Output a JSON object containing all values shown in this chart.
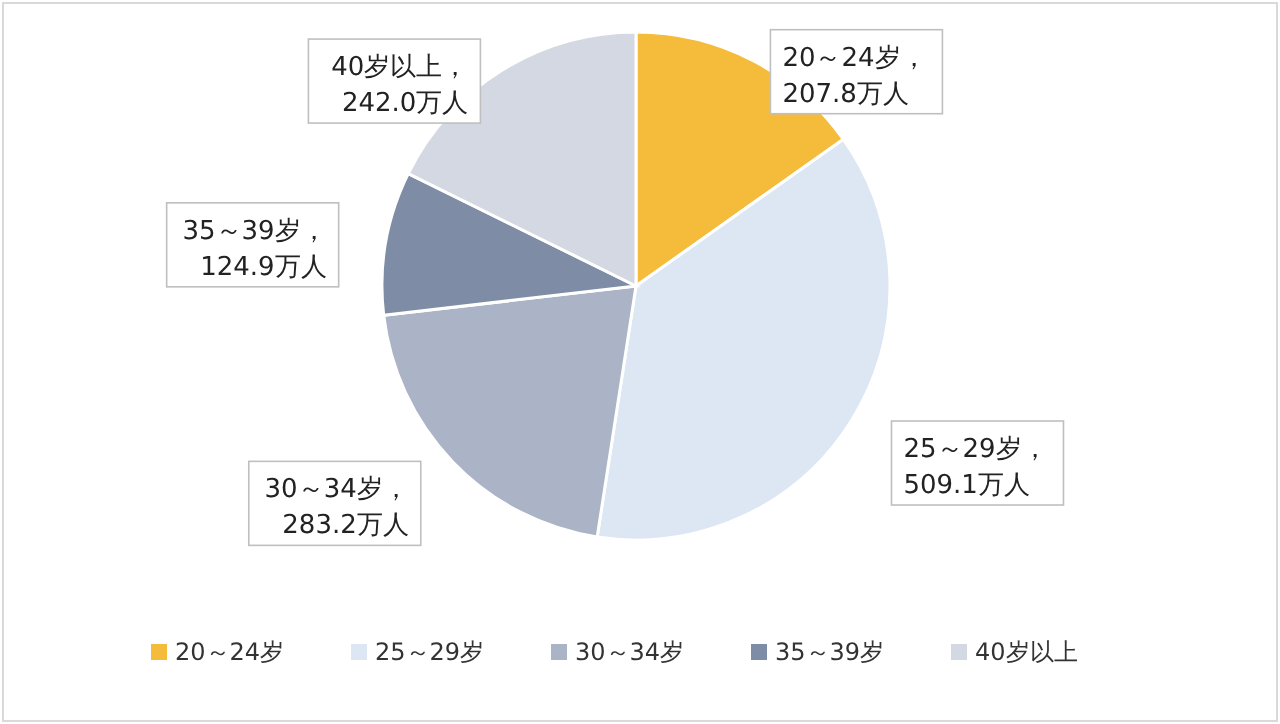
{
  "chart_data": {
    "type": "pie",
    "categories": [
      "20～24岁",
      "25～29岁",
      "30～34岁",
      "35～39岁",
      "40岁以上"
    ],
    "values": [
      207.8,
      509.1,
      283.2,
      124.9,
      242.0
    ],
    "colors": [
      "#f5bb3b",
      "#dde7f3",
      "#aab4c6",
      "#7e8ca5",
      "#d3d8e2"
    ],
    "value_labels": [
      "20～24岁，\n207.8万人",
      "25～29岁，\n509.1万人",
      "30～34岁，\n283.2万人",
      "35～39岁，\n124.9万人",
      "40岁以上，\n242.0万人"
    ],
    "legend": "bottom"
  }
}
